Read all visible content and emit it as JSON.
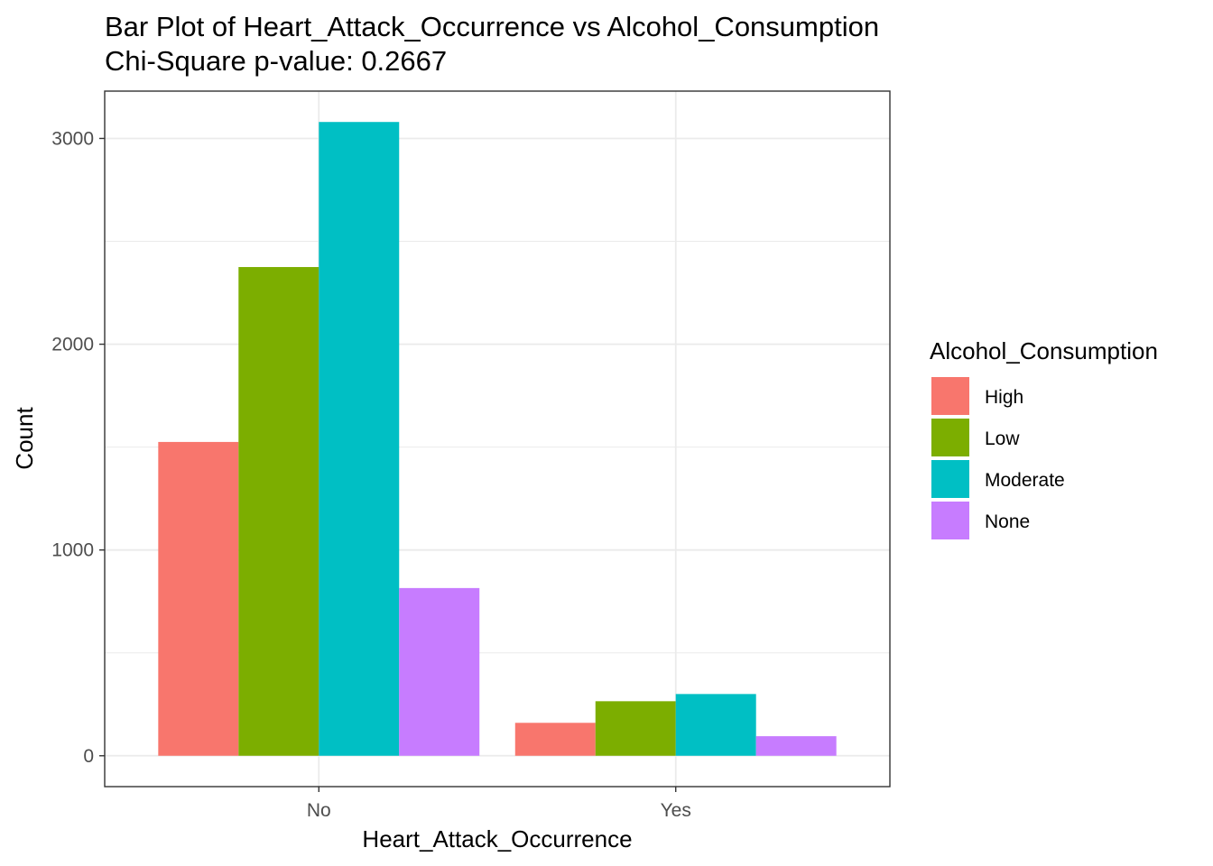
{
  "chart_data": {
    "type": "bar",
    "title": "Bar Plot of Heart_Attack_Occurrence vs Alcohol_Consumption",
    "subtitle": "Chi-Square p-value: 0.2667",
    "xlabel": "Heart_Attack_Occurrence",
    "ylabel": "Count",
    "categories": [
      "No",
      "Yes"
    ],
    "series": [
      {
        "name": "High",
        "color": "#F8766D",
        "values": [
          1525,
          160
        ]
      },
      {
        "name": "Low",
        "color": "#7CAE00",
        "values": [
          2375,
          265
        ]
      },
      {
        "name": "Moderate",
        "color": "#00BFC4",
        "values": [
          3080,
          300
        ]
      },
      {
        "name": "None",
        "color": "#C77CFF",
        "values": [
          815,
          95
        ]
      }
    ],
    "ylim": [
      -150,
      3230
    ],
    "yticks": [
      0,
      1000,
      2000,
      3000
    ],
    "ytick_labels": [
      "0",
      "1000",
      "2000",
      "3000"
    ],
    "grid": true,
    "legend_title": "Alcohol_Consumption",
    "legend_position": "right"
  }
}
